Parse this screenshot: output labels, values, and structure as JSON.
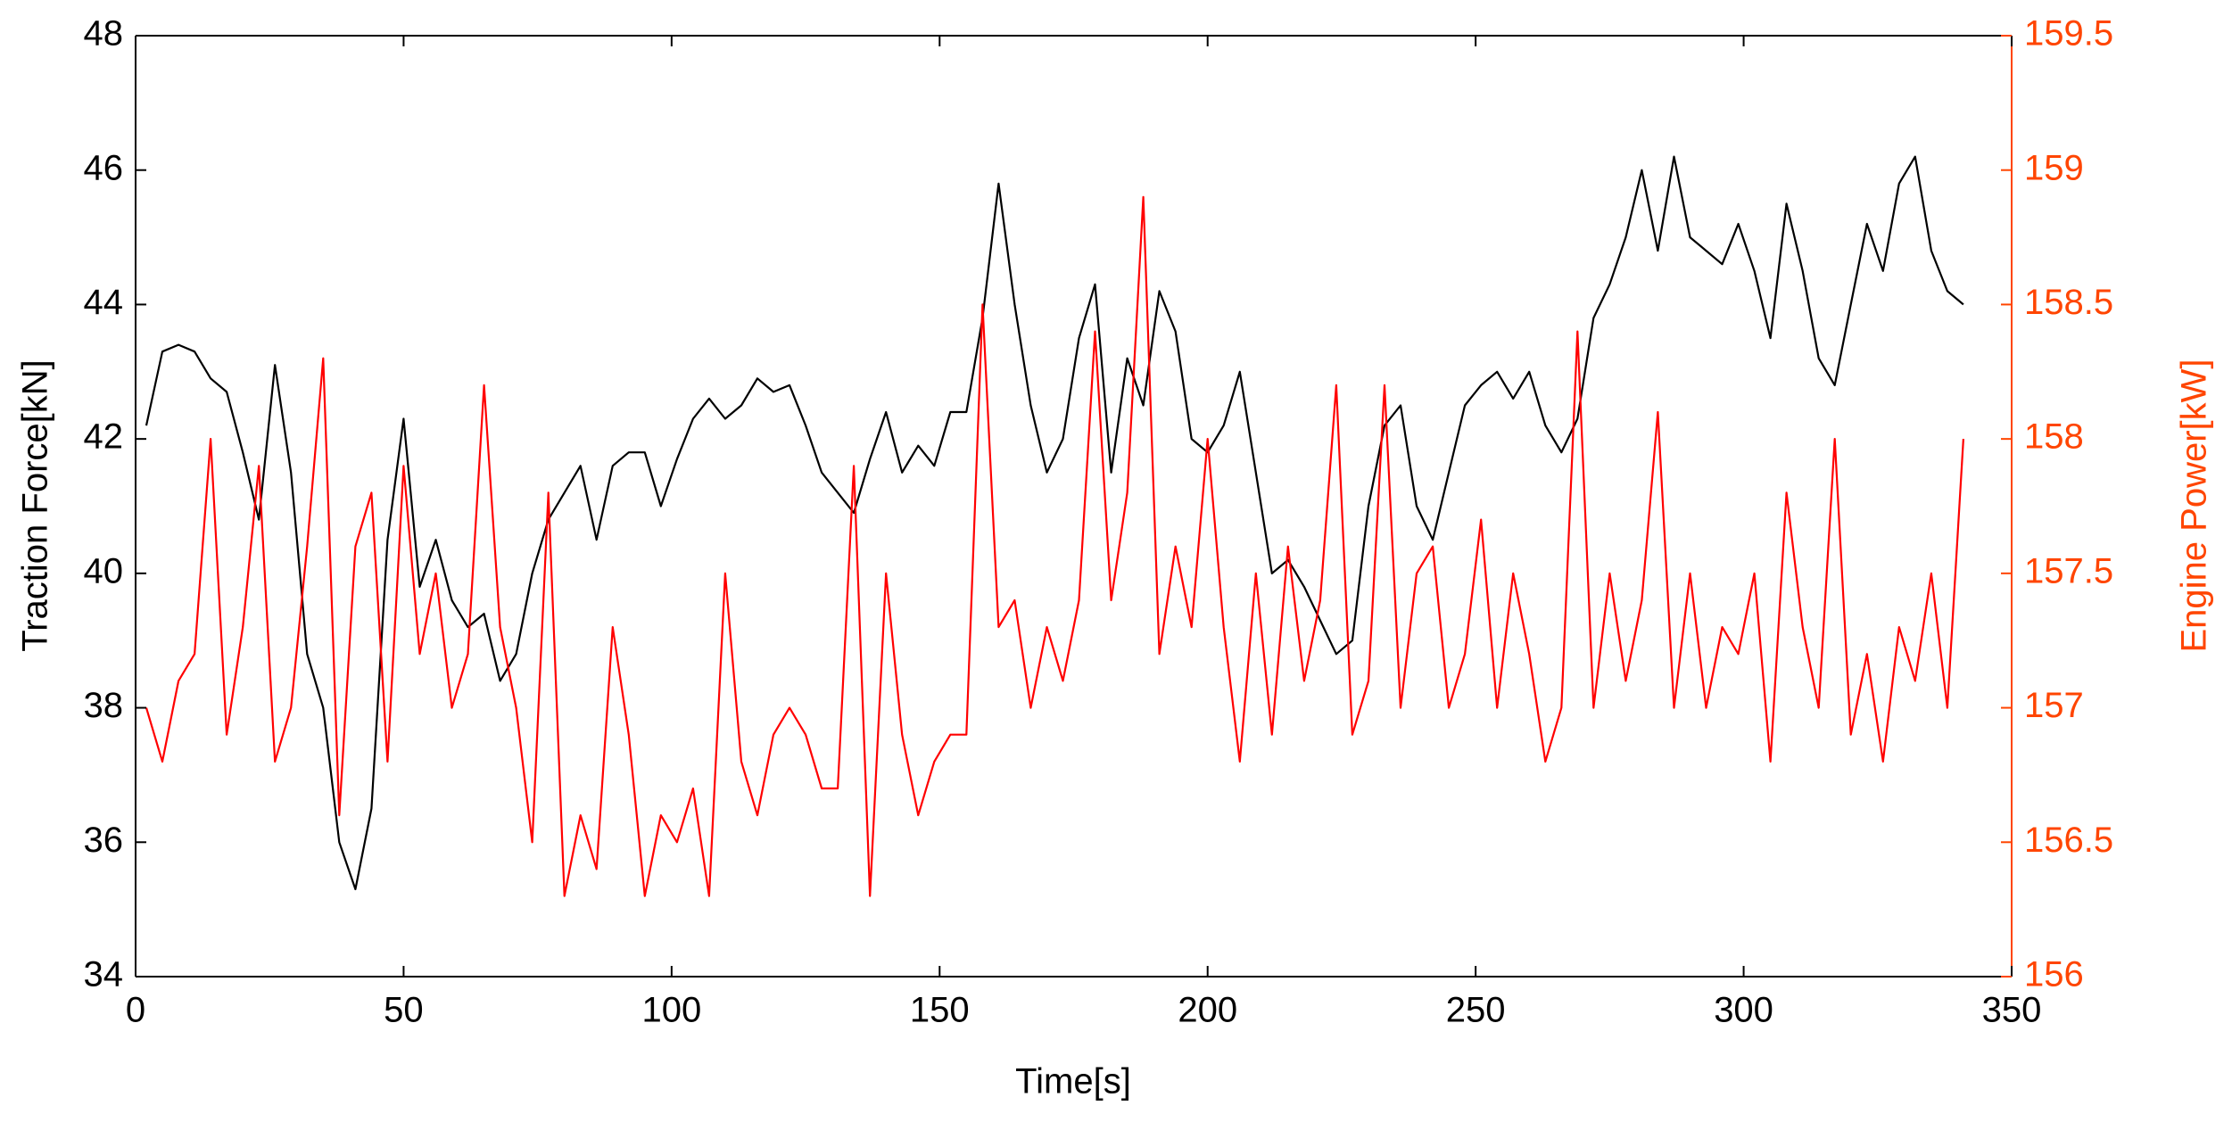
{
  "chart_data": {
    "type": "line",
    "xlabel": "Time[s]",
    "ylabel": "Traction Force[kN]",
    "y2label": "Engine Power[kW]",
    "x": [
      2,
      5,
      8,
      11,
      14,
      17,
      20,
      23,
      26,
      29,
      32,
      35,
      38,
      41,
      44,
      47,
      50,
      53,
      56,
      59,
      62,
      65,
      68,
      71,
      74,
      77,
      80,
      83,
      86,
      89,
      92,
      95,
      98,
      101,
      104,
      107,
      110,
      113,
      116,
      119,
      122,
      125,
      128,
      131,
      134,
      137,
      140,
      143,
      146,
      149,
      152,
      155,
      158,
      161,
      164,
      167,
      170,
      173,
      176,
      179,
      182,
      185,
      188,
      191,
      194,
      197,
      200,
      203,
      206,
      209,
      212,
      215,
      218,
      221,
      224,
      227,
      230,
      233,
      236,
      239,
      242,
      245,
      248,
      251,
      254,
      257,
      260,
      263,
      266,
      269,
      272,
      275,
      278,
      281,
      284,
      287,
      290,
      293,
      296,
      299,
      302,
      305,
      308,
      311,
      314,
      317,
      320,
      323,
      326,
      329,
      332,
      335,
      338,
      341
    ],
    "series": [
      {
        "name": "Traction Force",
        "color": "#000000",
        "axis": "y",
        "values": [
          42.2,
          43.3,
          43.4,
          43.3,
          42.9,
          42.7,
          41.8,
          40.8,
          43.1,
          41.5,
          38.8,
          38.0,
          36.0,
          35.3,
          36.5,
          40.5,
          42.3,
          39.8,
          40.5,
          39.6,
          39.2,
          39.4,
          38.4,
          38.8,
          40.0,
          40.8,
          41.2,
          41.6,
          40.5,
          41.6,
          41.8,
          41.8,
          41.0,
          41.7,
          42.3,
          42.6,
          42.3,
          42.5,
          42.9,
          42.7,
          42.8,
          42.2,
          41.5,
          41.2,
          40.9,
          41.7,
          42.4,
          41.5,
          41.9,
          41.6,
          42.4,
          42.4,
          43.8,
          45.8,
          44.0,
          42.5,
          41.5,
          42.0,
          43.5,
          44.3,
          41.5,
          43.2,
          42.5,
          44.2,
          43.6,
          42.0,
          41.8,
          42.2,
          43.0,
          41.5,
          40.0,
          40.2,
          39.8,
          39.3,
          38.8,
          39.0,
          41.0,
          42.2,
          42.5,
          41.0,
          40.5,
          41.5,
          42.5,
          42.8,
          43.0,
          42.6,
          43.0,
          42.2,
          41.8,
          42.3,
          43.8,
          44.3,
          45.0,
          46.0,
          44.8,
          46.2,
          45.0,
          44.8,
          44.6,
          45.2,
          44.5,
          43.5,
          45.5,
          44.5,
          43.2,
          42.8,
          44.0,
          45.2,
          44.5,
          45.8,
          46.2,
          44.8,
          44.2,
          44.0
        ]
      },
      {
        "name": "Engine Power",
        "color": "#ff0000",
        "axis": "y2",
        "values": [
          157.0,
          156.8,
          157.1,
          157.2,
          158.0,
          156.9,
          157.3,
          157.9,
          156.8,
          157.0,
          157.6,
          158.3,
          156.6,
          157.6,
          157.8,
          156.8,
          157.9,
          157.2,
          157.5,
          157.0,
          157.2,
          158.2,
          157.3,
          157.0,
          156.5,
          157.8,
          156.3,
          156.6,
          156.4,
          157.3,
          156.9,
          156.3,
          156.6,
          156.5,
          156.7,
          156.3,
          157.5,
          156.8,
          156.6,
          156.9,
          157.0,
          156.9,
          156.7,
          156.7,
          157.9,
          156.3,
          157.5,
          156.9,
          156.6,
          156.8,
          156.9,
          156.9,
          158.5,
          157.3,
          157.4,
          157.0,
          157.3,
          157.1,
          157.4,
          158.4,
          157.4,
          157.8,
          158.9,
          157.2,
          157.6,
          157.3,
          158.0,
          157.3,
          156.8,
          157.5,
          156.9,
          157.6,
          157.1,
          157.4,
          158.2,
          156.9,
          157.1,
          158.2,
          157.0,
          157.5,
          157.6,
          157.0,
          157.2,
          157.7,
          157.0,
          157.5,
          157.2,
          156.8,
          157.0,
          158.4,
          157.0,
          157.5,
          157.1,
          157.4,
          158.1,
          157.0,
          157.5,
          157.0,
          157.3,
          157.2,
          157.5,
          156.8,
          157.8,
          157.3,
          157.0,
          158.0,
          156.9,
          157.2,
          156.8,
          157.3,
          157.1,
          157.5,
          157.0,
          158.0
        ]
      }
    ],
    "xlim": [
      0,
      350
    ],
    "xticks": [
      0,
      50,
      100,
      150,
      200,
      250,
      300,
      350
    ],
    "ylim": [
      34,
      48
    ],
    "yticks": [
      34,
      36,
      38,
      40,
      42,
      44,
      46,
      48
    ],
    "y2lim": [
      156,
      159.5
    ],
    "y2ticks": [
      156,
      156.5,
      157,
      157.5,
      158,
      158.5,
      159,
      159.5
    ],
    "y2color": "#ff4500",
    "grid": false
  }
}
